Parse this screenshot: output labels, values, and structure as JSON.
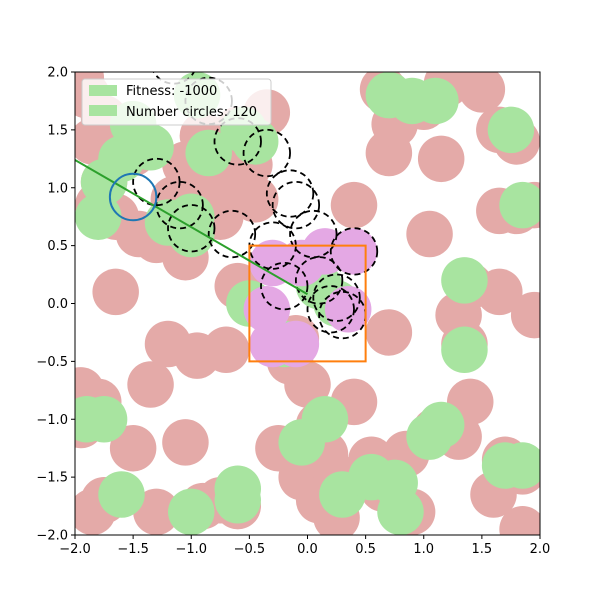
{
  "chart_data": {
    "type": "scatter",
    "xlim": [
      -2,
      2
    ],
    "ylim": [
      -2,
      2
    ],
    "x_ticks": [
      -2.0,
      -1.5,
      -1.0,
      -0.5,
      0.0,
      0.5,
      1.0,
      1.5,
      2.0
    ],
    "y_ticks": [
      -2.0,
      -1.5,
      -1.0,
      -0.5,
      0.0,
      0.5,
      1.0,
      1.5,
      2.0
    ],
    "x_tick_labels": [
      "−2.0",
      "−1.5",
      "−1.0",
      "−0.5",
      "0.0",
      "0.5",
      "1.0",
      "1.5",
      "2.0"
    ],
    "y_tick_labels": [
      "−2.0",
      "−1.5",
      "−1.0",
      "−0.5",
      "0.0",
      "0.5",
      "1.0",
      "1.5",
      "2.0"
    ],
    "grid": false,
    "legend": {
      "placement": "top-left",
      "entries": [
        {
          "label": "Fitness: -1000",
          "color": "#a8e4a0"
        },
        {
          "label": "Number circles: 120",
          "color": "#a8e4a0"
        }
      ]
    },
    "circle_radius": 0.2,
    "colors": {
      "obstacle": "#e4aaa8",
      "green": "#a8e4a0",
      "inside": "#e4a8e4",
      "dashed_outline": "#000000",
      "blue_circle": "#1f77b4",
      "orange_box": "#ff7f0e",
      "line": "#2ca02c"
    },
    "obstacle_circles": [
      [
        -1.9,
        1.8
      ],
      [
        -1.85,
        1.4
      ],
      [
        -1.75,
        1.05
      ],
      [
        -1.65,
        0.75
      ],
      [
        -1.8,
        0.85
      ],
      [
        -1.5,
        1.3
      ],
      [
        -1.45,
        0.6
      ],
      [
        -1.3,
        0.55
      ],
      [
        -1.15,
        0.9
      ],
      [
        -1.05,
        0.4
      ],
      [
        -1.05,
        1.2
      ],
      [
        -0.9,
        1.45
      ],
      [
        -0.8,
        1.05
      ],
      [
        -0.75,
        0.75
      ],
      [
        -0.6,
        1.5
      ],
      [
        -0.5,
        1.2
      ],
      [
        -0.45,
        0.9
      ],
      [
        -0.35,
        1.65
      ],
      [
        -1.75,
        1.6
      ],
      [
        -1.95,
        1.95
      ],
      [
        -1.65,
        0.1
      ],
      [
        -1.2,
        -0.35
      ],
      [
        -0.95,
        -0.45
      ],
      [
        -0.7,
        -0.4
      ],
      [
        -0.6,
        0.15
      ],
      [
        -1.35,
        -0.7
      ],
      [
        -1.8,
        -0.85
      ],
      [
        -1.95,
        -0.75
      ],
      [
        -1.95,
        -1.05
      ],
      [
        -1.5,
        -1.25
      ],
      [
        -1.05,
        -1.2
      ],
      [
        -0.75,
        -1.7
      ],
      [
        -1.75,
        -1.7
      ],
      [
        -1.3,
        -1.8
      ],
      [
        -0.9,
        -1.75
      ],
      [
        -0.6,
        -1.75
      ],
      [
        -1.85,
        -1.8
      ],
      [
        -0.15,
        -0.5
      ],
      [
        0.0,
        -0.7
      ],
      [
        -0.1,
        -0.3
      ],
      [
        0.4,
        0.85
      ],
      [
        0.7,
        1.3
      ],
      [
        0.75,
        1.55
      ],
      [
        1.0,
        1.7
      ],
      [
        0.65,
        1.85
      ],
      [
        1.15,
        1.25
      ],
      [
        1.2,
        1.9
      ],
      [
        1.5,
        1.85
      ],
      [
        1.65,
        1.5
      ],
      [
        1.8,
        1.4
      ],
      [
        1.65,
        0.8
      ],
      [
        1.95,
        0.85
      ],
      [
        1.8,
        0.8
      ],
      [
        1.05,
        0.6
      ],
      [
        1.4,
        0.15
      ],
      [
        1.65,
        0.1
      ],
      [
        1.95,
        -0.1
      ],
      [
        1.3,
        -0.1
      ],
      [
        0.7,
        -0.25
      ],
      [
        0.4,
        -0.85
      ],
      [
        1.35,
        -0.35
      ],
      [
        1.4,
        -0.85
      ],
      [
        1.1,
        -1.1
      ],
      [
        1.3,
        -1.15
      ],
      [
        0.85,
        -1.3
      ],
      [
        0.1,
        -1.05
      ],
      [
        0.15,
        -1.3
      ],
      [
        -0.25,
        -1.25
      ],
      [
        -0.05,
        -1.5
      ],
      [
        0.25,
        -1.5
      ],
      [
        0.55,
        -1.35
      ],
      [
        0.65,
        -1.6
      ],
      [
        0.9,
        -1.8
      ],
      [
        0.25,
        -1.85
      ],
      [
        0.1,
        -1.7
      ],
      [
        1.7,
        -1.35
      ],
      [
        1.85,
        -1.45
      ],
      [
        1.6,
        -1.65
      ],
      [
        1.85,
        -1.95
      ],
      [
        0.35,
        -1.55
      ]
    ],
    "green_circles": [
      [
        -1.75,
        1.05
      ],
      [
        -1.8,
        0.75
      ],
      [
        -1.6,
        1.25
      ],
      [
        -1.35,
        1.35
      ],
      [
        -1.2,
        0.7
      ],
      [
        -1.0,
        0.6
      ],
      [
        -1.0,
        0.75
      ],
      [
        -0.85,
        1.3
      ],
      [
        -0.55,
        1.5
      ],
      [
        -0.45,
        1.4
      ],
      [
        -0.95,
        1.8
      ],
      [
        -0.5,
        0.0
      ],
      [
        -0.2,
        -0.35
      ],
      [
        0.1,
        0.15
      ],
      [
        0.25,
        0.0
      ],
      [
        0.7,
        1.8
      ],
      [
        0.9,
        1.75
      ],
      [
        1.1,
        1.75
      ],
      [
        1.75,
        1.5
      ],
      [
        1.85,
        0.85
      ],
      [
        1.35,
        0.2
      ],
      [
        1.35,
        -0.4
      ],
      [
        1.05,
        -1.15
      ],
      [
        1.15,
        -1.05
      ],
      [
        0.15,
        -1.0
      ],
      [
        -0.05,
        -1.2
      ],
      [
        0.3,
        -1.65
      ],
      [
        0.55,
        -1.5
      ],
      [
        0.75,
        -1.55
      ],
      [
        0.8,
        -1.8
      ],
      [
        1.7,
        -1.4
      ],
      [
        1.85,
        -1.4
      ],
      [
        -0.6,
        -1.6
      ],
      [
        -0.6,
        -1.7
      ],
      [
        -1.6,
        -1.65
      ],
      [
        -1.9,
        -1.0
      ],
      [
        -1.75,
        -1.0
      ],
      [
        -1.0,
        -1.8
      ],
      [
        -1.5,
        1.55
      ]
    ],
    "inside_circles": [
      [
        -0.3,
        0.35
      ],
      [
        -0.05,
        0.35
      ],
      [
        0.15,
        0.45
      ],
      [
        0.4,
        0.45
      ],
      [
        -0.35,
        -0.05
      ],
      [
        -0.3,
        -0.35
      ],
      [
        -0.1,
        -0.35
      ],
      [
        0.35,
        -0.05
      ]
    ],
    "dashed_circles": [
      [
        -1.3,
        1.05
      ],
      [
        -1.1,
        0.85
      ],
      [
        -1.0,
        0.65
      ],
      [
        -0.65,
        0.6
      ],
      [
        -0.3,
        0.5
      ],
      [
        0.05,
        0.6
      ],
      [
        0.4,
        0.45
      ],
      [
        -0.2,
        0.15
      ],
      [
        0.2,
        -0.05
      ],
      [
        0.1,
        0.2
      ],
      [
        0.25,
        0.05
      ],
      [
        -0.15,
        0.95
      ],
      [
        -0.35,
        1.3
      ],
      [
        -0.6,
        1.4
      ],
      [
        -0.85,
        1.75
      ],
      [
        -1.15,
        2.1
      ],
      [
        -0.1,
        0.85
      ],
      [
        0.3,
        -0.1
      ]
    ],
    "blue_circle": {
      "center": [
        -1.5,
        0.92
      ],
      "radius": 0.2
    },
    "orange_box": {
      "x0": -0.5,
      "y0": -0.5,
      "x1": 0.5,
      "y1": 0.5
    },
    "line": {
      "points": [
        [
          -2.0,
          1.24
        ],
        [
          0.0,
          0.08
        ]
      ]
    }
  }
}
